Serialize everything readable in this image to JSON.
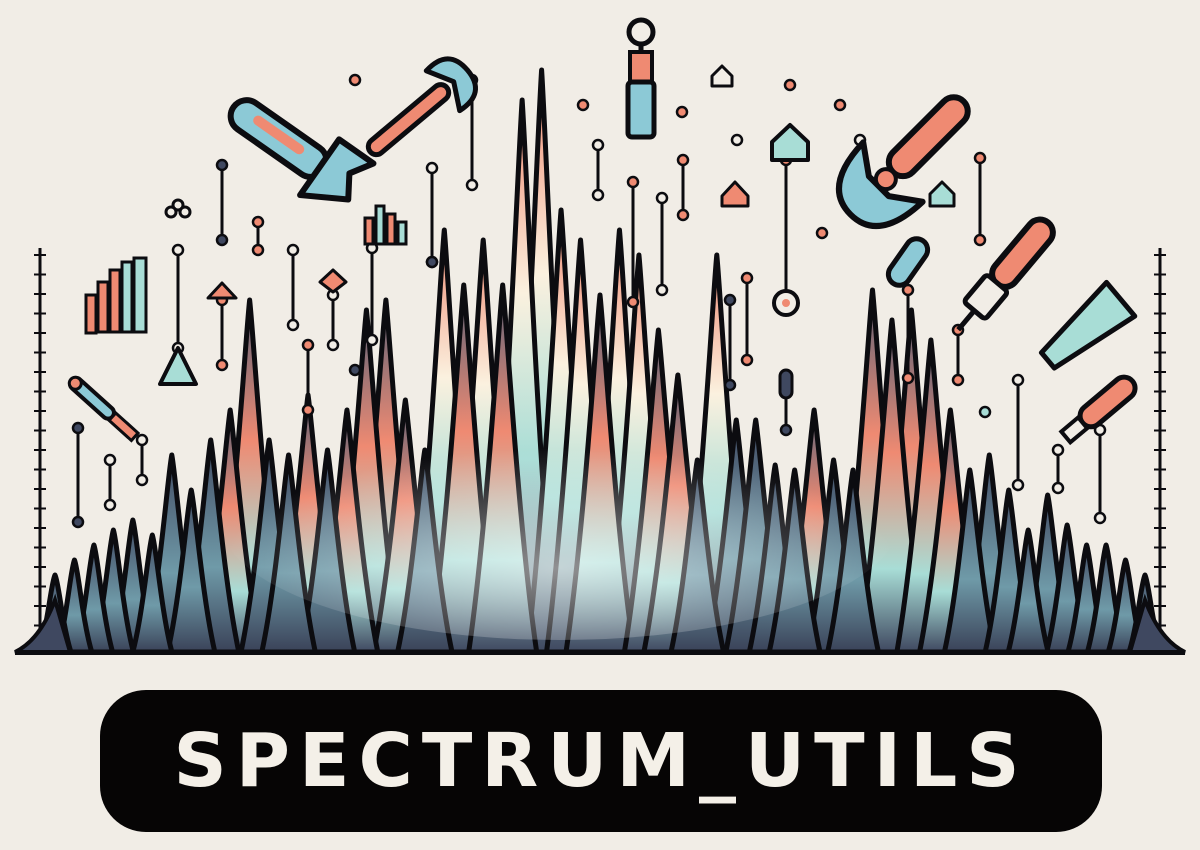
{
  "title": "SPECTRUM_UTILS",
  "colors": {
    "background": "#f1ede6",
    "ink": "#0c0c10",
    "peak_dark": "#3f4860",
    "peak_mint": "#a8ddd6",
    "peak_coral": "#ef8a72",
    "peak_cream": "#fbf1df",
    "banner": "#060505",
    "banner_text": "#f4f0e8"
  },
  "icons": [
    "wrench-icon",
    "wrench-icon",
    "screwdriver-icon",
    "open-end-wrench-icon",
    "screwdriver-icon",
    "screwdriver-icon",
    "pliers-icon",
    "spanner-icon",
    "chisel-icon",
    "bar-blocks-icon",
    "triangle-marker-icon",
    "diamond-marker-icon",
    "flower-marker-icon",
    "pill-handle-icon"
  ]
}
